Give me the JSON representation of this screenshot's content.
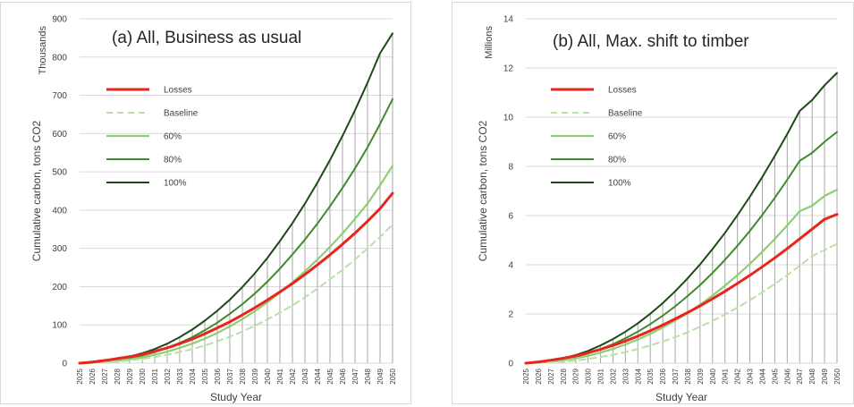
{
  "chart_data": [
    {
      "id": "a",
      "type": "line",
      "title": "(a) All, Business as usual",
      "units_label": "Thousands",
      "xlabel": "Study Year",
      "ylabel": "Cumulative carbon, tons CO2",
      "ylim": [
        0,
        900
      ],
      "yticks": [
        0,
        100,
        200,
        300,
        400,
        500,
        600,
        700,
        800,
        900
      ],
      "x": [
        2025,
        2026,
        2027,
        2028,
        2029,
        2030,
        2031,
        2032,
        2033,
        2034,
        2035,
        2036,
        2037,
        2038,
        2039,
        2040,
        2041,
        2042,
        2043,
        2044,
        2045,
        2046,
        2047,
        2048,
        2049,
        2050
      ],
      "vertical_lines_series": "100%",
      "grid": true,
      "legend_position": "left",
      "series": [
        {
          "name": "Losses",
          "color": "#e8251c",
          "dash": false,
          "width": 3,
          "values": [
            0,
            3,
            7,
            12,
            17,
            23,
            31,
            40,
            51,
            63,
            77,
            92,
            108,
            126,
            145,
            165,
            186,
            208,
            232,
            257,
            283,
            311,
            340,
            371,
            404,
            444
          ]
        },
        {
          "name": "Baseline",
          "color": "#b8e0a8",
          "dash": true,
          "width": 2,
          "values": [
            0,
            0.5,
            2,
            4,
            7,
            11,
            16,
            22,
            29,
            37,
            46,
            57,
            69,
            83,
            98,
            114,
            132,
            151,
            172,
            195,
            219,
            244,
            271,
            300,
            330,
            362
          ]
        },
        {
          "name": "60%",
          "color": "#8fcd72",
          "dash": false,
          "width": 2.2,
          "values": [
            0,
            1,
            3,
            6,
            10,
            15,
            22,
            30,
            40,
            51,
            64,
            79,
            96,
            115,
            136,
            159,
            184,
            211,
            240,
            271,
            304,
            339,
            377,
            417,
            465,
            516
          ]
        },
        {
          "name": "80%",
          "color": "#3f8a2a",
          "dash": false,
          "width": 2,
          "values": [
            0,
            1,
            4,
            8,
            13,
            20,
            29,
            40,
            53,
            68,
            86,
            106,
            129,
            154,
            182,
            213,
            247,
            284,
            323,
            365,
            410,
            458,
            509,
            564,
            625,
            690
          ]
        },
        {
          "name": "100%",
          "color": "#1e4a17",
          "dash": false,
          "width": 2,
          "values": [
            0,
            1,
            5,
            10,
            17,
            26,
            37,
            51,
            68,
            88,
            111,
            137,
            166,
            199,
            235,
            275,
            319,
            366,
            417,
            472,
            531,
            594,
            661,
            733,
            810,
            862
          ]
        }
      ]
    },
    {
      "id": "b",
      "type": "line",
      "title": "(b) All, Max. shift to timber",
      "units_label": "Millions",
      "xlabel": "Study Year",
      "ylabel": "Cumulative carbon, tons CO2",
      "ylim": [
        0,
        14
      ],
      "yticks": [
        0,
        2,
        4,
        6,
        8,
        10,
        12,
        14
      ],
      "x": [
        2025,
        2026,
        2027,
        2028,
        2029,
        2030,
        2031,
        2032,
        2033,
        2034,
        2035,
        2036,
        2037,
        2038,
        2039,
        2040,
        2041,
        2042,
        2043,
        2044,
        2045,
        2046,
        2047,
        2048,
        2049,
        2050
      ],
      "vertical_lines_series": "100%",
      "grid": true,
      "legend_position": "left",
      "series": [
        {
          "name": "Losses",
          "color": "#e8251c",
          "dash": false,
          "width": 3,
          "values": [
            0,
            0.05,
            0.12,
            0.2,
            0.3,
            0.42,
            0.56,
            0.72,
            0.9,
            1.1,
            1.32,
            1.55,
            1.8,
            2.06,
            2.33,
            2.62,
            2.92,
            3.24,
            3.57,
            3.92,
            4.28,
            4.66,
            5.05,
            5.45,
            5.85,
            6.05
          ]
        },
        {
          "name": "Baseline",
          "color": "#b8e0a8",
          "dash": true,
          "width": 2,
          "values": [
            0,
            0.01,
            0.03,
            0.06,
            0.11,
            0.17,
            0.25,
            0.34,
            0.45,
            0.58,
            0.72,
            0.88,
            1.06,
            1.26,
            1.48,
            1.72,
            1.98,
            2.26,
            2.56,
            2.88,
            3.22,
            3.58,
            3.96,
            4.36,
            4.6,
            4.85
          ]
        },
        {
          "name": "60%",
          "color": "#8fcd72",
          "dash": false,
          "width": 2.2,
          "values": [
            0,
            0.02,
            0.06,
            0.12,
            0.2,
            0.3,
            0.43,
            0.58,
            0.76,
            0.96,
            1.19,
            1.45,
            1.73,
            2.04,
            2.38,
            2.75,
            3.15,
            3.58,
            4.04,
            4.53,
            5.05,
            5.6,
            6.18,
            6.4,
            6.8,
            7.05
          ]
        },
        {
          "name": "80%",
          "color": "#3f8a2a",
          "dash": false,
          "width": 2,
          "values": [
            0,
            0.02,
            0.07,
            0.15,
            0.26,
            0.4,
            0.57,
            0.77,
            1.01,
            1.28,
            1.59,
            1.93,
            2.31,
            2.73,
            3.18,
            3.67,
            4.2,
            4.77,
            5.38,
            6.03,
            6.72,
            7.45,
            8.22,
            8.55,
            9.0,
            9.4
          ]
        },
        {
          "name": "100%",
          "color": "#1e4a17",
          "dash": false,
          "width": 2,
          "values": [
            0,
            0.03,
            0.09,
            0.19,
            0.33,
            0.5,
            0.72,
            0.98,
            1.28,
            1.62,
            2.01,
            2.44,
            2.92,
            3.45,
            4.02,
            4.64,
            5.3,
            6.01,
            6.77,
            7.57,
            8.42,
            9.31,
            10.25,
            10.7,
            11.3,
            11.8
          ]
        }
      ]
    }
  ]
}
